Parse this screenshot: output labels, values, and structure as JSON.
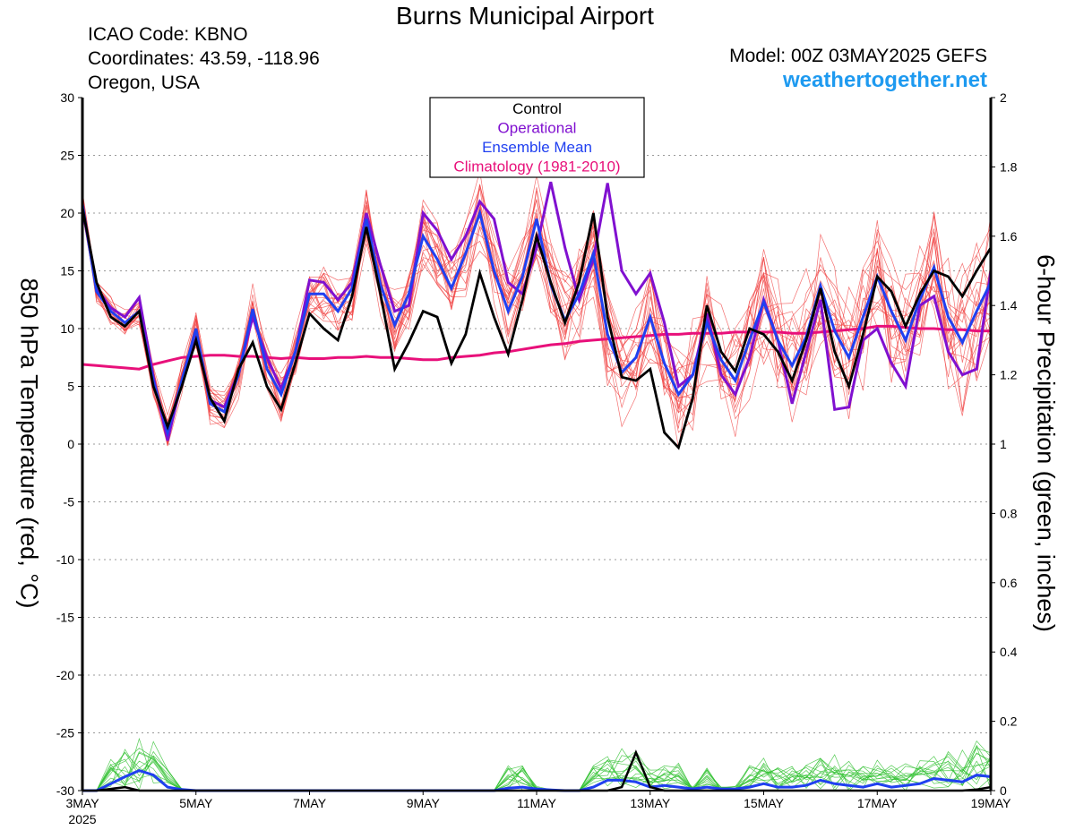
{
  "header": {
    "title": "Burns Municipal Airport",
    "icao": "ICAO Code: KBNO",
    "coordinates": "Coordinates: 43.59, -118.96",
    "region": "Oregon, USA",
    "model": "Model: 00Z 03MAY2025 GEFS",
    "site": "weathertogether.net"
  },
  "colors": {
    "control": "#000000",
    "operational": "#8010d0",
    "ensemble_mean": "#2040f0",
    "climatology": "#e8107a",
    "members_temp": "#f04040",
    "members_precip": "#30c030",
    "site": "#1e9af0"
  },
  "chart_data": {
    "type": "line",
    "x_unit": "6-hourly steps from 00Z 03MAY2025",
    "xlim": [
      0,
      64
    ],
    "x_ticks": [
      {
        "x": 0,
        "label": "3MAY",
        "sub": "2025"
      },
      {
        "x": 8,
        "label": "5MAY"
      },
      {
        "x": 16,
        "label": "7MAY"
      },
      {
        "x": 24,
        "label": "9MAY"
      },
      {
        "x": 32,
        "label": "11MAY"
      },
      {
        "x": 40,
        "label": "13MAY"
      },
      {
        "x": 48,
        "label": "15MAY"
      },
      {
        "x": 56,
        "label": "17MAY"
      },
      {
        "x": 64,
        "label": "19MAY"
      }
    ],
    "ylabel_left": "850 hPa Temperature (red, °C)",
    "ylabel_right": "6-hour Precipitation (green, inches)",
    "ylim_left": [
      -30,
      30
    ],
    "yticks_left": [
      30,
      25,
      20,
      15,
      10,
      5,
      0,
      -5,
      -10,
      -15,
      -20,
      -25,
      -30
    ],
    "ylim_right": [
      0,
      2
    ],
    "yticks_right": [
      "2",
      "1.8",
      "1.6",
      "1.4",
      "1.2",
      "1",
      "0.8",
      "0.6",
      "0.4",
      "0.2",
      "0"
    ],
    "grid": "dashed horizontal",
    "legend_position": "top-center",
    "legend": [
      "Control",
      "Operational",
      "Ensemble Mean",
      "Climatology (1981-2010)"
    ],
    "temperature": {
      "control": [
        20.5,
        14,
        11,
        10.2,
        11.5,
        5,
        1.5,
        5,
        9,
        4,
        2,
        6.5,
        8.8,
        5,
        3,
        7,
        11.3,
        10,
        9,
        12.8,
        18.8,
        13,
        6.5,
        8.8,
        11.5,
        11,
        7,
        9.5,
        14.8,
        11,
        7.8,
        12.5,
        18,
        14,
        10.5,
        14,
        20,
        11,
        5.8,
        5.5,
        6.5,
        1,
        -0.3,
        4,
        12,
        8,
        6.3,
        10,
        9.5,
        8,
        5.5,
        9,
        13.5,
        8,
        5,
        9.5,
        14.5,
        13.2,
        10.2,
        13,
        15,
        14.5,
        12.8,
        15,
        17
      ],
      "operational": [
        20.5,
        13.5,
        11.8,
        11,
        12.7,
        5.8,
        0.3,
        5.5,
        9.8,
        3.8,
        3.2,
        6.2,
        11,
        7.5,
        4.8,
        8,
        14.2,
        14,
        12.5,
        14,
        20,
        15.5,
        11.5,
        12,
        20,
        18.5,
        16,
        18,
        21,
        19.5,
        14,
        13,
        17,
        22.7,
        17,
        12.5,
        16,
        22.6,
        15,
        13,
        14.8,
        10.5,
        5,
        6,
        11.3,
        6,
        4.3,
        7.5,
        12.5,
        9,
        3.5,
        8,
        12.5,
        3,
        3.2,
        9,
        10,
        7,
        5,
        12,
        12.8,
        8,
        6,
        6.5,
        15
      ],
      "ensemble_mean": [
        20.8,
        13.2,
        11.5,
        10.5,
        11.5,
        5.5,
        1,
        5.5,
        10,
        3.5,
        2.8,
        6,
        11.7,
        6.5,
        4.3,
        8,
        13,
        13,
        11.5,
        13.5,
        19.5,
        13.8,
        10.3,
        13,
        18,
        16,
        13.5,
        16.5,
        20,
        15,
        11.5,
        14.5,
        19.5,
        13.8,
        10.7,
        13,
        16.5,
        9.5,
        6.2,
        7.5,
        11,
        7,
        4.3,
        6,
        10.5,
        7.3,
        5.5,
        9,
        12.3,
        9,
        6.8,
        9.3,
        13.7,
        9.8,
        7.5,
        11,
        14.5,
        11.5,
        9,
        12.5,
        15.3,
        11,
        8.8,
        11.5,
        14
      ],
      "climatology": [
        6.9,
        6.8,
        6.7,
        6.6,
        6.5,
        6.9,
        7.2,
        7.5,
        7.6,
        7.7,
        7.7,
        7.6,
        7.6,
        7.5,
        7.4,
        7.5,
        7.4,
        7.4,
        7.5,
        7.5,
        7.6,
        7.5,
        7.5,
        7.4,
        7.3,
        7.3,
        7.5,
        7.6,
        7.7,
        7.9,
        8.0,
        8.2,
        8.4,
        8.6,
        8.7,
        8.9,
        9.0,
        9.1,
        9.2,
        9.3,
        9.4,
        9.5,
        9.5,
        9.6,
        9.6,
        9.6,
        9.7,
        9.7,
        9.7,
        9.7,
        9.6,
        9.6,
        9.7,
        9.8,
        9.9,
        10.0,
        10.2,
        10.2,
        10.1,
        10.0,
        10.0,
        9.9,
        9.9,
        9.8,
        9.8
      ]
    },
    "precipitation": {
      "control": [
        0,
        0,
        0.005,
        0.01,
        0,
        0,
        0,
        0,
        0,
        0,
        0,
        0,
        0,
        0,
        0,
        0,
        0,
        0,
        0,
        0,
        0,
        0,
        0,
        0,
        0,
        0,
        0,
        0,
        0,
        0,
        0,
        0,
        0,
        0,
        0,
        0,
        0,
        0,
        0.01,
        0.11,
        0.01,
        0,
        0,
        0,
        0,
        0,
        0,
        0,
        0,
        0,
        0,
        0,
        0,
        0,
        0,
        0,
        0,
        0,
        0,
        0,
        0,
        0,
        0,
        0.003,
        0.01
      ],
      "ensemble_mean": [
        0,
        0,
        0.02,
        0.04,
        0.058,
        0.045,
        0.01,
        0.003,
        0,
        0,
        0,
        0,
        0,
        0,
        0,
        0,
        0,
        0,
        0,
        0,
        0,
        0,
        0,
        0,
        0,
        0,
        0,
        0,
        0,
        0,
        0.007,
        0.01,
        0.005,
        0.002,
        0,
        0,
        0.01,
        0.03,
        0.03,
        0.025,
        0.01,
        0.015,
        0.01,
        0.005,
        0.01,
        0.005,
        0.005,
        0.01,
        0.02,
        0.01,
        0.01,
        0.015,
        0.03,
        0.02,
        0.015,
        0.01,
        0.02,
        0.01,
        0.015,
        0.02,
        0.035,
        0.03,
        0.025,
        0.045,
        0.04
      ]
    }
  }
}
